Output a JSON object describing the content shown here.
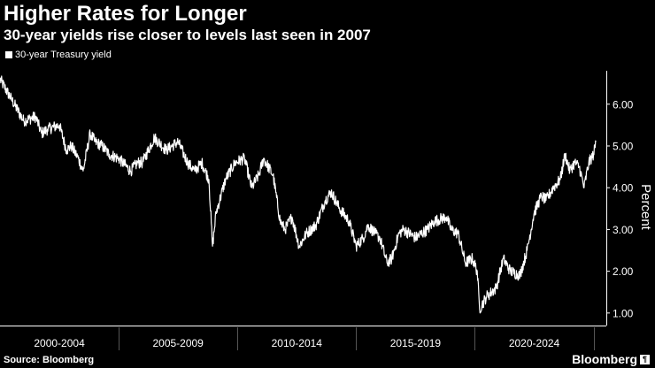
{
  "chart_data": {
    "type": "line",
    "title": "Higher Rates for Longer",
    "subtitle": "30-year yields rise closer to levels last seen in 2007",
    "series": [
      {
        "name": "30-year Treasury yield",
        "x": [
          2000.0,
          2000.5,
          2001.0,
          2001.5,
          2001.75,
          2002.0,
          2002.5,
          2002.8,
          2003.0,
          2003.3,
          2003.5,
          2003.8,
          2004.0,
          2004.3,
          2004.6,
          2005.0,
          2005.5,
          2005.8,
          2006.0,
          2006.5,
          2007.0,
          2007.5,
          2007.9,
          2008.2,
          2008.5,
          2008.8,
          2008.95,
          2009.1,
          2009.5,
          2009.9,
          2010.3,
          2010.6,
          2010.9,
          2011.1,
          2011.5,
          2011.8,
          2012.0,
          2012.3,
          2012.6,
          2012.9,
          2013.3,
          2013.7,
          2013.95,
          2014.3,
          2014.7,
          2015.0,
          2015.3,
          2015.5,
          2015.8,
          2016.0,
          2016.3,
          2016.5,
          2016.8,
          2017.0,
          2017.5,
          2018.0,
          2018.3,
          2018.8,
          2019.0,
          2019.3,
          2019.6,
          2019.9,
          2020.1,
          2020.2,
          2020.5,
          2020.9,
          2021.2,
          2021.5,
          2021.9,
          2022.2,
          2022.5,
          2022.8,
          2023.0,
          2023.3,
          2023.6,
          2023.8,
          2024.0,
          2024.2,
          2024.4,
          2024.6,
          2024.8,
          2025.0,
          2025.1
        ],
        "values": [
          6.6,
          6.1,
          5.6,
          5.7,
          5.3,
          5.4,
          5.5,
          4.9,
          5.0,
          4.7,
          4.4,
          5.3,
          5.1,
          5.0,
          4.8,
          4.7,
          4.4,
          4.6,
          4.6,
          5.2,
          4.9,
          5.1,
          4.6,
          4.4,
          4.6,
          4.2,
          2.6,
          3.4,
          4.2,
          4.6,
          4.7,
          4.0,
          4.3,
          4.7,
          4.3,
          3.2,
          3.0,
          3.3,
          2.6,
          2.9,
          3.1,
          3.7,
          3.9,
          3.5,
          3.2,
          2.6,
          2.8,
          3.1,
          2.9,
          2.8,
          2.2,
          2.3,
          2.9,
          3.0,
          2.8,
          3.0,
          3.2,
          3.3,
          3.0,
          2.9,
          2.2,
          2.3,
          2.0,
          1.1,
          1.4,
          1.6,
          2.3,
          2.0,
          1.9,
          2.5,
          3.4,
          3.8,
          3.7,
          4.0,
          4.2,
          4.8,
          4.4,
          4.6,
          4.5,
          4.0,
          4.6,
          4.8,
          5.1
        ]
      }
    ],
    "ylabel": "Percent",
    "ylim": [
      0.7,
      6.8
    ],
    "yticks": [
      "1.00",
      "2.00",
      "3.00",
      "4.00",
      "5.00",
      "6.00"
    ],
    "ytick_values": [
      1,
      2,
      3,
      4,
      5,
      6
    ],
    "xlim": [
      2000.0,
      2025.5
    ],
    "xticks": [
      "2000-2004",
      "2005-2009",
      "2010-2014",
      "2015-2019",
      "2020-2024"
    ],
    "xtick_centers": [
      2002.5,
      2007.5,
      2012.5,
      2017.5,
      2022.5
    ],
    "xtick_bounds": [
      2005,
      2010,
      2015,
      2020,
      2025
    ],
    "legend": "top-left",
    "grid": false
  },
  "footer": {
    "source": "Source: Bloomberg",
    "brand": "Bloomberg",
    "brand_mark": "¶"
  },
  "colors": {
    "background": "#000000",
    "line": "#ffffff",
    "axis": "#ffffff",
    "divider": "#555555"
  }
}
